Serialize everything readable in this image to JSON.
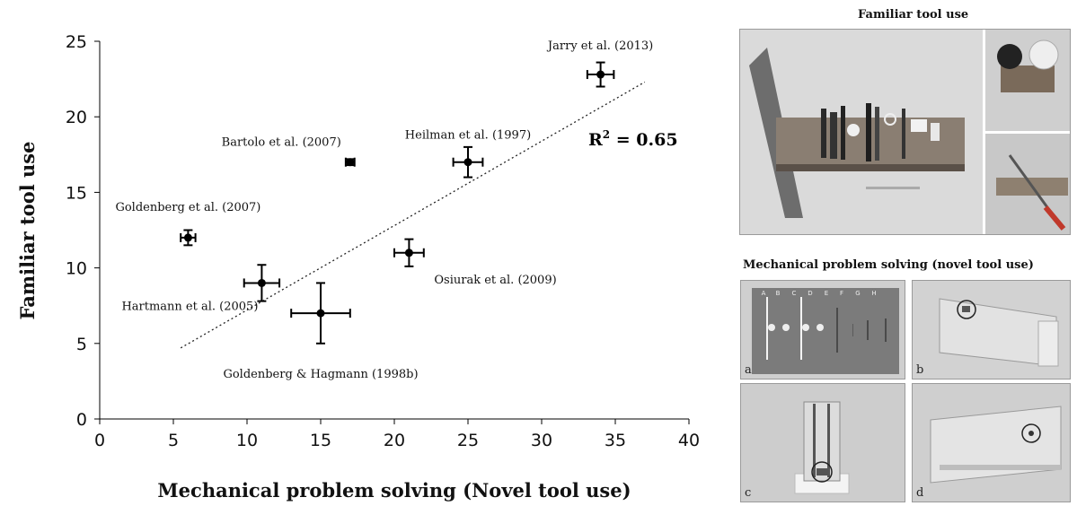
{
  "chart_data": {
    "type": "scatter",
    "xlabel": "Mechanical problem solving (Novel tool use)",
    "ylabel": "Familiar tool use",
    "xlim": [
      0,
      40
    ],
    "ylim": [
      0,
      25
    ],
    "xticks": [
      0,
      5,
      10,
      15,
      20,
      25,
      30,
      35,
      40
    ],
    "yticks": [
      0,
      5,
      10,
      15,
      20,
      25
    ],
    "grid": false,
    "points": [
      {
        "label": "Jarry et al. (2013)",
        "x": 34,
        "y": 22.8,
        "xerr": 0.9,
        "yerr": 0.8
      },
      {
        "label": "Heilman et al. (1997)",
        "x": 25,
        "y": 17,
        "xerr": 1,
        "yerr": 1
      },
      {
        "label": "Bartolo et al. (2007)",
        "x": 17,
        "y": 17,
        "xerr": 0.3,
        "yerr": 0.2
      },
      {
        "label": "Goldenberg et al. (2007)",
        "x": 6,
        "y": 12,
        "xerr": 0.5,
        "yerr": 0.5
      },
      {
        "label": "Osiurak et al. (2009)",
        "x": 21,
        "y": 11,
        "xerr": 1,
        "yerr": 0.9
      },
      {
        "label": "Hartmann et al. (2005)",
        "x": 11,
        "y": 9,
        "xerr": 1.2,
        "yerr": 1.2
      },
      {
        "label": "Goldenberg & Hagmann (1998b)",
        "x": 15,
        "y": 7,
        "xerr": 2,
        "yerr": 2
      }
    ],
    "trendline": {
      "x": [
        5.5,
        37
      ],
      "y": [
        4.7,
        22.3
      ]
    },
    "annotation": {
      "prefix": "R",
      "sup": "2",
      "suffix": " = 0.65"
    }
  },
  "panels": {
    "familiar_title": "Familiar tool use",
    "mechanical_title": "Mechanical problem solving (novel tool use)",
    "photo_labels": [
      "a",
      "b",
      "c",
      "d"
    ],
    "board_letters": [
      "A",
      "B",
      "C",
      "D",
      "E",
      "F",
      "G",
      "H"
    ]
  }
}
